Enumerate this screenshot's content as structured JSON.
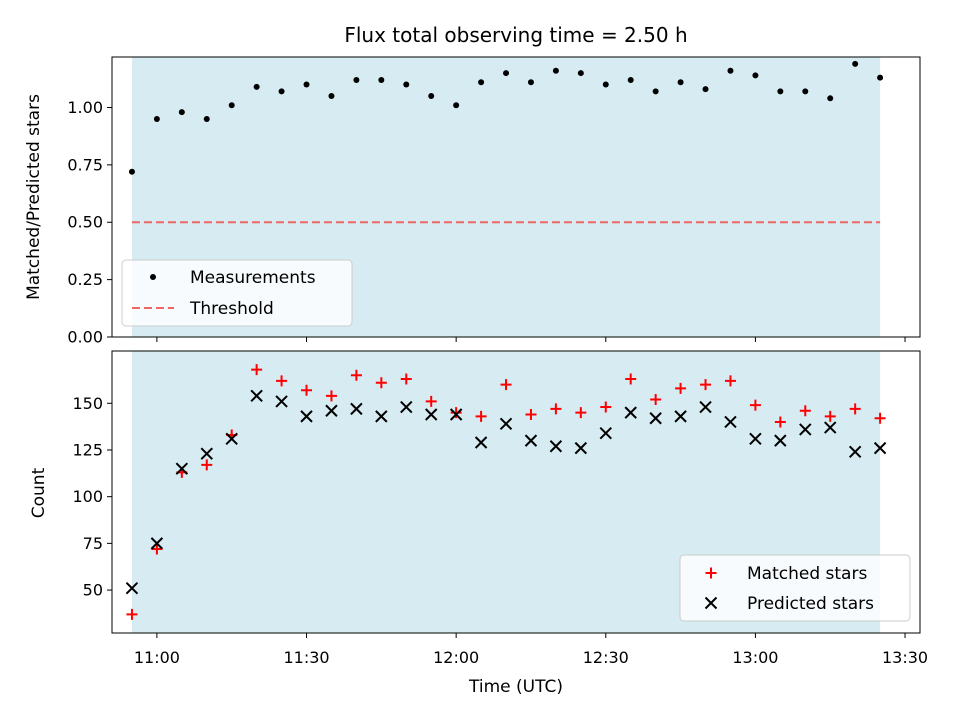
{
  "chart_data": {
    "title": "Flux total observing time = 2.50 h",
    "xlabel": "Time (UTC)",
    "x_tick_labels": [
      "11:00",
      "11:30",
      "12:00",
      "12:30",
      "13:00",
      "13:30"
    ],
    "colors": {
      "shade": "#add8e6",
      "measurements": "#000000",
      "threshold": "#ee6666",
      "matched": "#ff0000",
      "predicted": "#000000"
    },
    "times": [
      "10:55",
      "11:00",
      "11:05",
      "11:10",
      "11:15",
      "11:20",
      "11:25",
      "11:30",
      "11:35",
      "11:40",
      "11:45",
      "11:50",
      "11:55",
      "12:00",
      "12:05",
      "12:10",
      "12:15",
      "12:20",
      "12:25",
      "12:30",
      "12:35",
      "12:40",
      "12:45",
      "12:50",
      "12:55",
      "13:00",
      "13:05",
      "13:10",
      "13:15",
      "13:20",
      "13:25"
    ],
    "shaded_span": [
      "10:55",
      "13:25"
    ],
    "panels": [
      {
        "type": "scatter",
        "ylabel": "Matched/Predicted stars",
        "ylim": [
          0,
          1.22
        ],
        "y_tick_labels": [
          "0.00",
          "0.25",
          "0.50",
          "0.75",
          "1.00"
        ],
        "y_tick_values": [
          0,
          0.25,
          0.5,
          0.75,
          1.0
        ],
        "legend_position": "lower-left",
        "series": [
          {
            "name": "Measurements",
            "values": [
              0.72,
              0.95,
              0.98,
              0.95,
              1.01,
              1.09,
              1.07,
              1.1,
              1.05,
              1.12,
              1.12,
              1.1,
              1.05,
              1.01,
              1.11,
              1.15,
              1.11,
              1.16,
              1.15,
              1.1,
              1.12,
              1.07,
              1.11,
              1.08,
              1.16,
              1.14,
              1.07,
              1.07,
              1.04,
              1.19,
              1.13
            ]
          }
        ],
        "threshold": {
          "name": "Threshold",
          "value": 0.5
        }
      },
      {
        "type": "scatter",
        "ylabel": "Count",
        "ylim": [
          27,
          178
        ],
        "y_tick_labels": [
          "50",
          "75",
          "100",
          "125",
          "150"
        ],
        "y_tick_values": [
          50,
          75,
          100,
          125,
          150
        ],
        "legend_position": "lower-right",
        "series": [
          {
            "name": "Matched stars",
            "marker": "+",
            "values": [
              37,
              72,
              113,
              117,
              133,
              168,
              162,
              157,
              154,
              165,
              161,
              163,
              151,
              145,
              143,
              160,
              144,
              147,
              145,
              148,
              163,
              152,
              158,
              160,
              162,
              149,
              140,
              146,
              143,
              147,
              142
            ]
          },
          {
            "name": "Predicted stars",
            "marker": "x",
            "values": [
              51,
              75,
              115,
              123,
              131,
              154,
              151,
              143,
              146,
              147,
              143,
              148,
              144,
              144,
              129,
              139,
              130,
              127,
              126,
              134,
              145,
              142,
              143,
              148,
              140,
              131,
              130,
              136,
              137,
              124,
              126
            ]
          }
        ]
      }
    ]
  }
}
